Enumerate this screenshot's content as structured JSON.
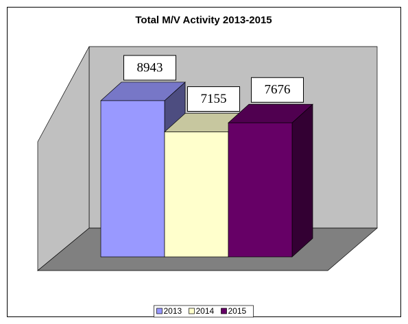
{
  "chart_data": {
    "type": "bar3d",
    "title": "Total M/V Activity 2013-2015",
    "series": [
      {
        "name": "2013",
        "color": "#9999ff",
        "values": [
          8943
        ]
      },
      {
        "name": "2014",
        "color": "#ffffcc",
        "values": [
          7155
        ]
      },
      {
        "name": "2015",
        "color": "#660066",
        "values": [
          7676
        ]
      }
    ],
    "legend": "bottom"
  }
}
